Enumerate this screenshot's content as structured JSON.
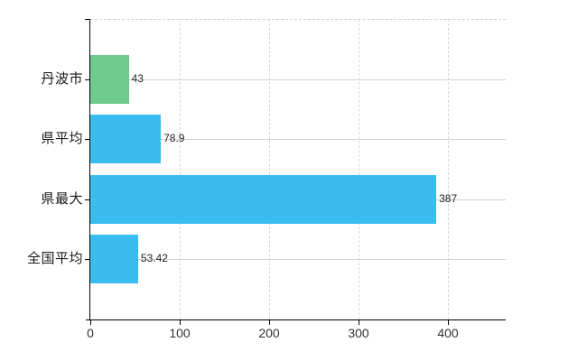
{
  "chart_data": {
    "type": "bar",
    "orientation": "horizontal",
    "title": "",
    "xlabel": "",
    "ylabel": "",
    "categories": [
      "丹波市",
      "県平均",
      "県最大",
      "全国平均"
    ],
    "values": [
      43,
      78.9,
      387,
      53.42
    ],
    "value_labels": [
      "43",
      "78.9",
      "387",
      "53.42"
    ],
    "bar_colors": [
      "#6dcb8d",
      "#3bbcee",
      "#3bbcee",
      "#3bbcee"
    ],
    "x_ticks": [
      0,
      100,
      200,
      300,
      400
    ],
    "x_tick_labels": [
      "0",
      "100",
      "200",
      "300",
      "400"
    ],
    "xlim": [
      0,
      464
    ],
    "grid": {
      "vertical_style": "dashed",
      "horizontal_style": "solid",
      "top_border_style": "dashed"
    },
    "legend": "none",
    "colors": {
      "background": "#ffffff",
      "axis": "#000000",
      "grid_vertical": "#d9d9d9",
      "grid_horizontal": "#ccd5cc",
      "grid_top": "#cfcfcf",
      "tick_text": "#333333",
      "category_text": "#1a1a1a",
      "value_text": "#222222"
    }
  }
}
